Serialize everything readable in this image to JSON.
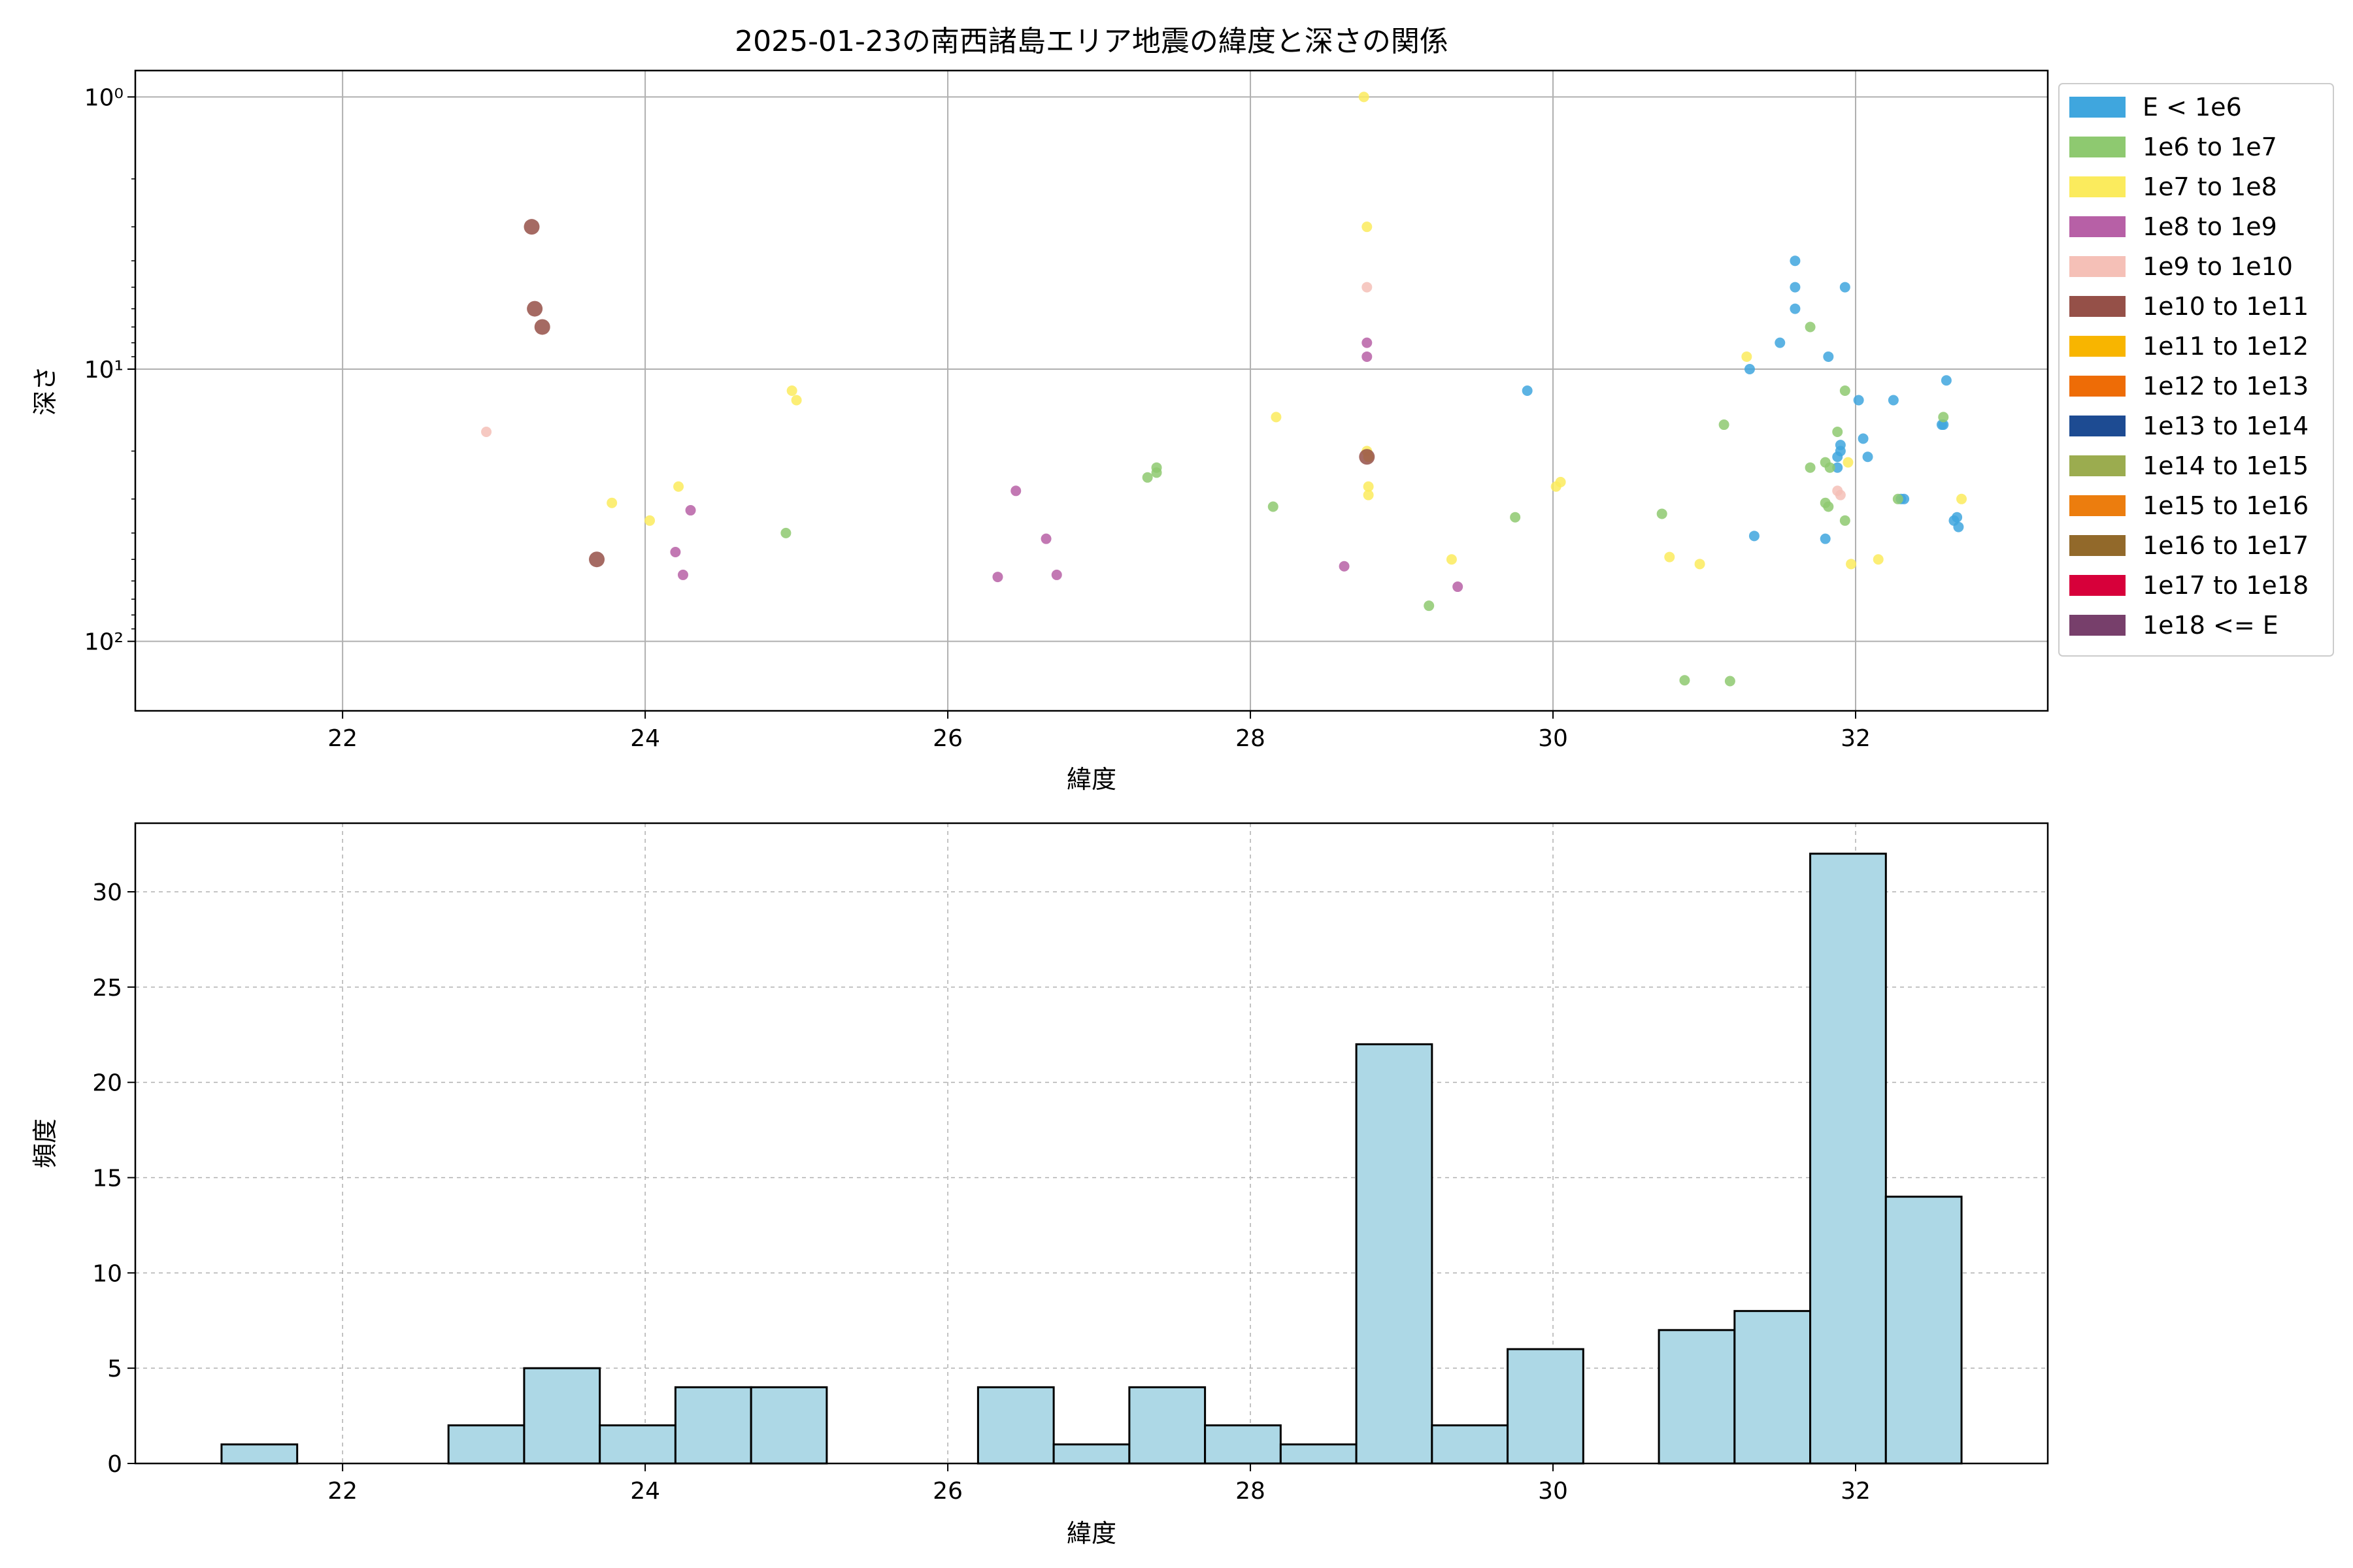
{
  "chart_data": [
    {
      "type": "scatter",
      "title": "2025-01-23の南西諸島エリア地震の緯度と深さの関係",
      "xlabel": "緯度",
      "ylabel": "深さ",
      "xlim": [
        20.63,
        33.27
      ],
      "ylim": [
        180,
        0.8
      ],
      "yscale": "log",
      "y_inverted": true,
      "grid": true,
      "x_ticks": [
        22,
        24,
        26,
        28,
        30,
        32
      ],
      "x_tick_labels": [
        "22",
        "24",
        "26",
        "28",
        "30",
        "32"
      ],
      "y_ticks": [
        1,
        10,
        100
      ],
      "y_tick_labels": [
        "10⁰",
        "10¹",
        "10²"
      ],
      "legend_position": "outside-right",
      "legend": [
        {
          "label": "E < 1e6",
          "color": "#3fa6de"
        },
        {
          "label": "1e6 to 1e7",
          "color": "#8ec970"
        },
        {
          "label": "1e7 to 1e8",
          "color": "#fbeb5d"
        },
        {
          "label": "1e8 to 1e9",
          "color": "#b760a6"
        },
        {
          "label": "1e9 to 1e10",
          "color": "#f5c0b7"
        },
        {
          "label": "1e10 to 1e11",
          "color": "#955048"
        },
        {
          "label": "1e11 to 1e12",
          "color": "#f8b500"
        },
        {
          "label": "1e12 to 1e13",
          "color": "#ee6c06"
        },
        {
          "label": "1e13 to 1e14",
          "color": "#1d4b92"
        },
        {
          "label": "1e14 to 1e15",
          "color": "#9bac4f"
        },
        {
          "label": "1e15 to 1e16",
          "color": "#ec7d0e"
        },
        {
          "label": "1e16 to 1e17",
          "color": "#92692a"
        },
        {
          "label": "1e17 to 1e18",
          "color": "#d7003a"
        },
        {
          "label": "1e18 <= E",
          "color": "#773f6b"
        }
      ],
      "series": [
        {
          "class": 0,
          "points": [
            [
              31.3,
              10
            ],
            [
              31.5,
              8
            ],
            [
              31.6,
              4
            ],
            [
              31.6,
              5
            ],
            [
              31.6,
              6
            ],
            [
              31.93,
              5
            ],
            [
              29.83,
              12
            ],
            [
              31.82,
              9
            ],
            [
              32.02,
              13
            ],
            [
              32.25,
              13
            ],
            [
              32.6,
              11
            ],
            [
              32.05,
              18
            ],
            [
              32.08,
              21
            ],
            [
              31.9,
              19
            ],
            [
              31.9,
              20
            ],
            [
              31.88,
              21
            ],
            [
              31.88,
              23
            ],
            [
              32.3,
              30
            ],
            [
              32.32,
              30
            ],
            [
              32.67,
              35
            ],
            [
              32.65,
              36
            ],
            [
              32.68,
              38
            ],
            [
              31.33,
              41
            ],
            [
              31.8,
              42
            ],
            [
              32.58,
              16
            ],
            [
              32.57,
              16
            ]
          ]
        },
        {
          "class": 1,
          "points": [
            [
              24.93,
              40
            ],
            [
              27.32,
              25
            ],
            [
              27.38,
              23
            ],
            [
              27.38,
              24
            ],
            [
              28.15,
              32
            ],
            [
              29.75,
              35
            ],
            [
              29.18,
              74
            ],
            [
              30.72,
              34
            ],
            [
              30.87,
              139
            ],
            [
              31.17,
              140
            ],
            [
              31.13,
              16
            ],
            [
              31.7,
              7
            ],
            [
              31.7,
              23
            ],
            [
              31.8,
              22
            ],
            [
              31.83,
              23
            ],
            [
              31.88,
              17
            ],
            [
              31.93,
              12
            ],
            [
              31.8,
              31
            ],
            [
              31.82,
              32
            ],
            [
              31.93,
              36
            ],
            [
              32.28,
              30
            ],
            [
              32.58,
              15
            ]
          ]
        },
        {
          "class": 2,
          "points": [
            [
              23.78,
              31
            ],
            [
              24.03,
              36
            ],
            [
              24.22,
              27
            ],
            [
              24.97,
              12
            ],
            [
              25.0,
              13
            ],
            [
              28.17,
              15
            ],
            [
              28.75,
              1.0
            ],
            [
              28.77,
              3
            ],
            [
              28.77,
              20
            ],
            [
              28.78,
              21
            ],
            [
              28.78,
              27
            ],
            [
              28.78,
              29
            ],
            [
              29.33,
              50
            ],
            [
              30.02,
              27
            ],
            [
              30.05,
              26
            ],
            [
              30.77,
              49
            ],
            [
              30.97,
              52
            ],
            [
              31.28,
              9
            ],
            [
              31.95,
              22
            ],
            [
              31.97,
              52
            ],
            [
              32.15,
              50
            ],
            [
              32.7,
              30
            ]
          ]
        },
        {
          "class": 3,
          "points": [
            [
              24.2,
              47
            ],
            [
              24.25,
              57
            ],
            [
              24.3,
              33
            ],
            [
              26.33,
              58
            ],
            [
              26.45,
              28
            ],
            [
              26.65,
              42
            ],
            [
              26.72,
              57
            ],
            [
              28.62,
              53
            ],
            [
              28.77,
              8
            ],
            [
              28.77,
              9
            ],
            [
              29.37,
              63
            ]
          ]
        },
        {
          "class": 4,
          "points": [
            [
              22.95,
              17
            ],
            [
              28.77,
              5
            ],
            [
              31.88,
              28
            ],
            [
              31.9,
              29
            ]
          ]
        },
        {
          "class": 5,
          "points": [
            [
              23.25,
              3
            ],
            [
              23.27,
              6
            ],
            [
              23.32,
              7
            ],
            [
              23.68,
              50
            ],
            [
              28.77,
              21
            ]
          ]
        }
      ]
    },
    {
      "type": "bar",
      "subtype": "histogram",
      "title": "",
      "xlabel": "緯度",
      "ylabel": "頻度",
      "xlim": [
        20.63,
        33.27
      ],
      "ylim": [
        0,
        33.6
      ],
      "grid": true,
      "grid_style": "dashed",
      "bar_color": "#add8e6",
      "edge_color": "#000000",
      "x_ticks": [
        22,
        24,
        26,
        28,
        30,
        32
      ],
      "x_tick_labels": [
        "22",
        "24",
        "26",
        "28",
        "30",
        "32"
      ],
      "y_ticks": [
        0,
        5,
        10,
        15,
        20,
        25,
        30
      ],
      "y_tick_labels": [
        "0",
        "5",
        "10",
        "15",
        "20",
        "25",
        "30"
      ],
      "bin_edges": [
        21.2,
        21.7,
        22.2,
        22.7,
        23.2,
        23.7,
        24.2,
        24.7,
        25.2,
        25.7,
        26.2,
        26.7,
        27.2,
        27.7,
        28.2,
        28.7,
        29.2,
        29.7,
        30.2,
        30.7,
        31.2,
        31.7,
        32.2,
        32.7
      ],
      "values": [
        1,
        0,
        0,
        2,
        5,
        2,
        4,
        4,
        0,
        0,
        4,
        1,
        4,
        2,
        1,
        22,
        2,
        6,
        0,
        7,
        8,
        32,
        14
      ]
    }
  ]
}
